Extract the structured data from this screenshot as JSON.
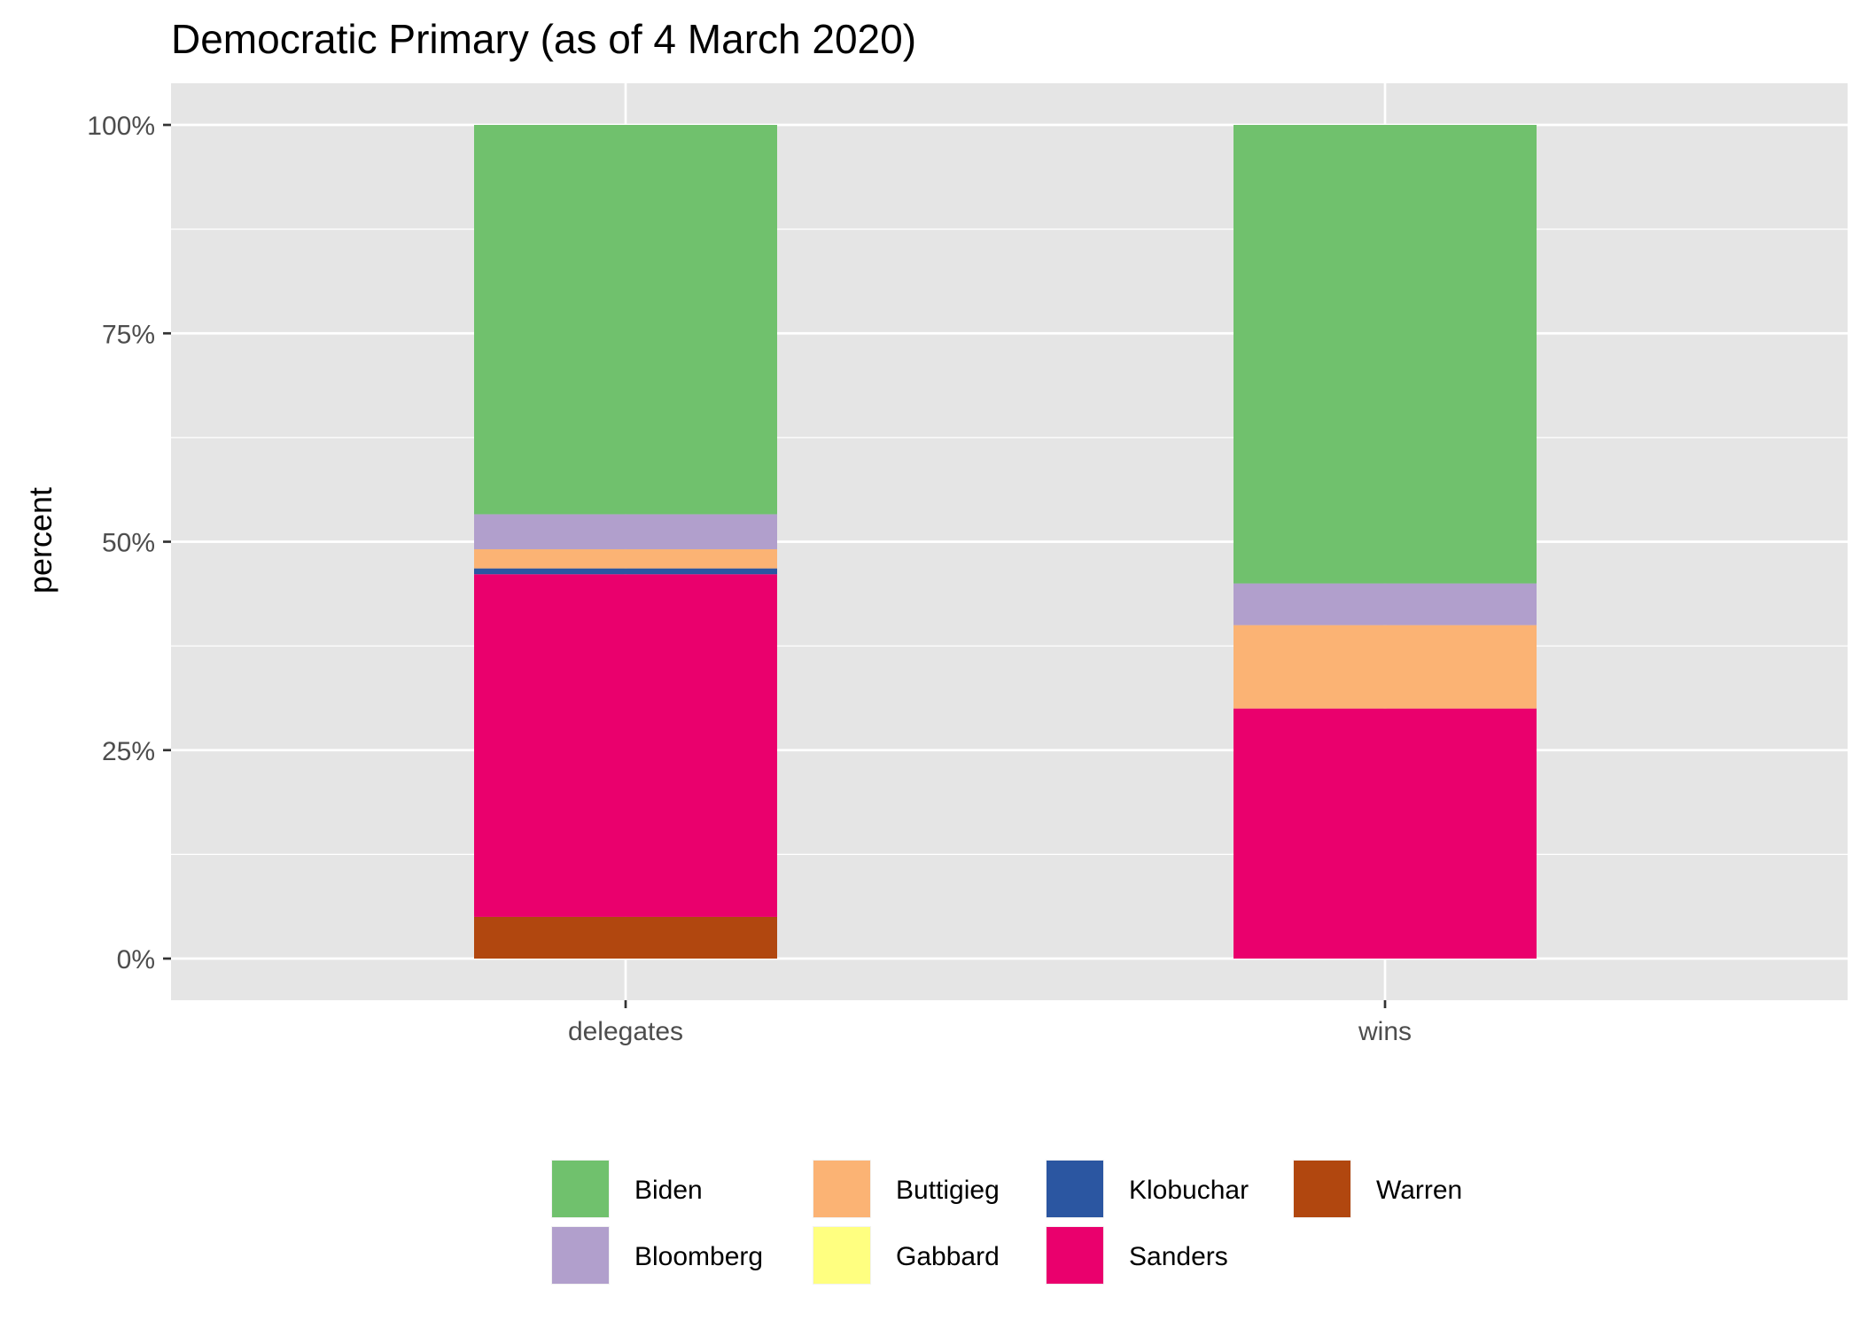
{
  "chart_data": {
    "type": "bar",
    "stacked": true,
    "title": "Democratic Primary (as of 4 March 2020)",
    "xlabel": "",
    "ylabel": "percent",
    "categories": [
      "delegates",
      "wins"
    ],
    "ylim": [
      0,
      1
    ],
    "y_ticks": [
      {
        "value": 0,
        "label": "0%"
      },
      {
        "value": 0.25,
        "label": "25%"
      },
      {
        "value": 0.5,
        "label": "50%"
      },
      {
        "value": 0.75,
        "label": "75%"
      },
      {
        "value": 1,
        "label": "100%"
      }
    ],
    "series": [
      {
        "name": "Warren",
        "color": "#b1470f",
        "values": [
          0.05,
          0.0
        ]
      },
      {
        "name": "Sanders",
        "color": "#ea006d",
        "values": [
          0.411,
          0.3
        ]
      },
      {
        "name": "Klobuchar",
        "color": "#2b56a1",
        "values": [
          0.007,
          0.0
        ]
      },
      {
        "name": "Gabbard",
        "color": "#ffff80",
        "values": [
          0.0,
          0.0
        ]
      },
      {
        "name": "Buttigieg",
        "color": "#fbb374",
        "values": [
          0.023,
          0.1
        ]
      },
      {
        "name": "Bloomberg",
        "color": "#b19fcc",
        "values": [
          0.042,
          0.05
        ]
      },
      {
        "name": "Biden",
        "color": "#70c16d",
        "values": [
          0.467,
          0.55
        ]
      }
    ],
    "legend": {
      "position": "bottom",
      "order": [
        "Biden",
        "Bloomberg",
        "Buttigieg",
        "Gabbard",
        "Klobuchar",
        "Sanders",
        "Warren"
      ]
    },
    "grid": true,
    "panel_background": "#e5e5e5",
    "grid_color": "#ffffff"
  }
}
